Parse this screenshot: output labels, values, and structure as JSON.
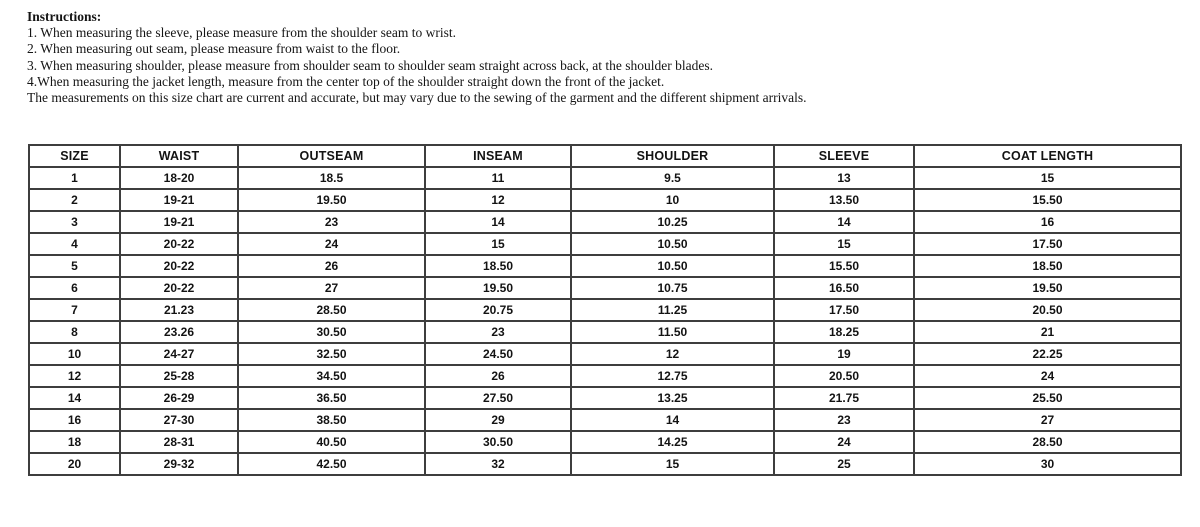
{
  "instructions": {
    "heading": "Instructions:",
    "lines": [
      "1. When measuring the sleeve, please measure from the shoulder seam to wrist.",
      "2. When measuring out seam, please measure from waist to the floor.",
      "3. When measuring shoulder, please measure from shoulder seam to shoulder seam straight across back, at the shoulder blades.",
      "4.When measuring the jacket length, measure from the center top of the shoulder straight down the front of the jacket.",
      "The measurements on this size chart are current and accurate, but may vary due to the sewing of the garment and the different shipment arrivals."
    ]
  },
  "size_chart": {
    "columns": [
      "SIZE",
      "WAIST",
      "OUTSEAM",
      "INSEAM",
      "SHOULDER",
      "SLEEVE",
      "COAT LENGTH"
    ],
    "rows": [
      [
        "1",
        "18-20",
        "18.5",
        "11",
        "9.5",
        "13",
        "15"
      ],
      [
        "2",
        "19-21",
        "19.50",
        "12",
        "10",
        "13.50",
        "15.50"
      ],
      [
        "3",
        "19-21",
        "23",
        "14",
        "10.25",
        "14",
        "16"
      ],
      [
        "4",
        "20-22",
        "24",
        "15",
        "10.50",
        "15",
        "17.50"
      ],
      [
        "5",
        "20-22",
        "26",
        "18.50",
        "10.50",
        "15.50",
        "18.50"
      ],
      [
        "6",
        "20-22",
        "27",
        "19.50",
        "10.75",
        "16.50",
        "19.50"
      ],
      [
        "7",
        "21.23",
        "28.50",
        "20.75",
        "11.25",
        "17.50",
        "20.50"
      ],
      [
        "8",
        "23.26",
        "30.50",
        "23",
        "11.50",
        "18.25",
        "21"
      ],
      [
        "10",
        "24-27",
        "32.50",
        "24.50",
        "12",
        "19",
        "22.25"
      ],
      [
        "12",
        "25-28",
        "34.50",
        "26",
        "12.75",
        "20.50",
        "24"
      ],
      [
        "14",
        "26-29",
        "36.50",
        "27.50",
        "13.25",
        "21.75",
        "25.50"
      ],
      [
        "16",
        "27-30",
        "38.50",
        "29",
        "14",
        "23",
        "27"
      ],
      [
        "18",
        "28-31",
        "40.50",
        "30.50",
        "14.25",
        "24",
        "28.50"
      ],
      [
        "20",
        "29-32",
        "42.50",
        "32",
        "15",
        "25",
        "30"
      ]
    ]
  },
  "colors": {
    "background": "#ffffff",
    "text": "#141414",
    "table_border": "#3e3e3e"
  }
}
